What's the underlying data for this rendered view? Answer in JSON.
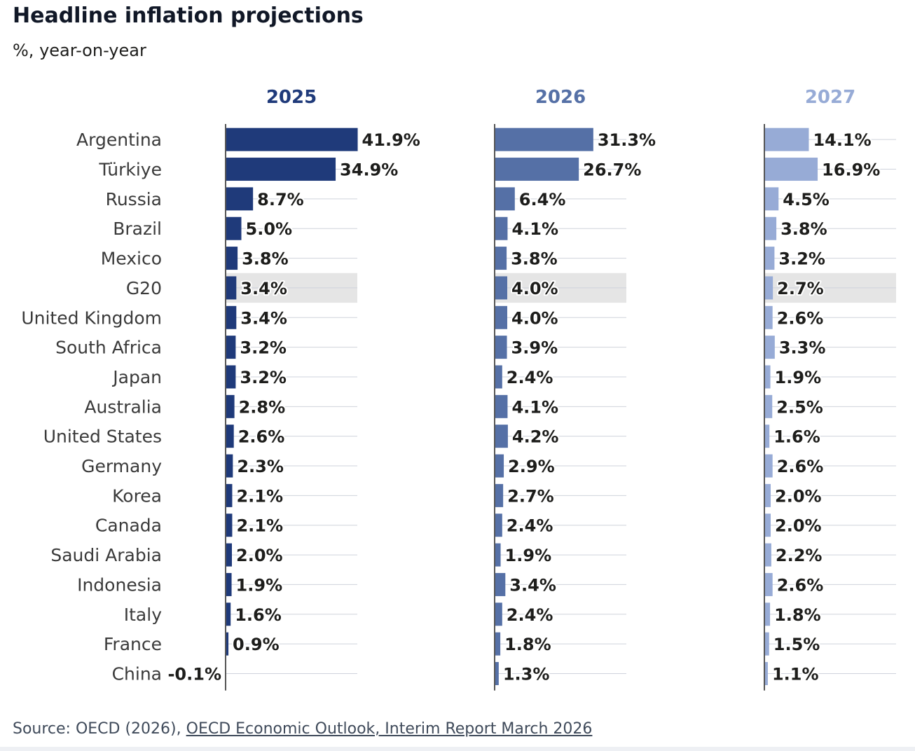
{
  "title": "Headline inflation projections",
  "subtitle": "%, year-on-year",
  "source": {
    "prefix": "Source: OECD (2026), ",
    "link_text": "OECD Economic Outlook, Interim Report March 2026"
  },
  "colors": {
    "2025": "#1f3a7a",
    "2026": "#5570a6",
    "2027": "#97abd6",
    "highlight": "#e5e5e5",
    "gridline": "#cfd3dc",
    "axis": "#555555"
  },
  "chart_data": {
    "type": "bar",
    "orientation": "horizontal",
    "title": "Headline inflation projections",
    "subtitle": "%, year-on-year",
    "categories": [
      "Argentina",
      "Türkiye",
      "Russia",
      "Brazil",
      "Mexico",
      "G20",
      "United Kingdom",
      "South Africa",
      "Japan",
      "Australia",
      "United States",
      "Germany",
      "Korea",
      "Canada",
      "Saudi Arabia",
      "Indonesia",
      "Italy",
      "France",
      "China"
    ],
    "highlight": "G20",
    "xlim": [
      0,
      45
    ],
    "series": [
      {
        "name": "2025",
        "values": [
          41.9,
          34.9,
          8.7,
          5.0,
          3.8,
          3.4,
          3.4,
          3.2,
          3.2,
          2.8,
          2.6,
          2.3,
          2.1,
          2.1,
          2.0,
          1.9,
          1.6,
          0.9,
          -0.1
        ],
        "labels": [
          "41.9%",
          "34.9%",
          "8.7%",
          "5.0%",
          "3.8%",
          "3.4%",
          "3.4%",
          "3.2%",
          "3.2%",
          "2.8%",
          "2.6%",
          "2.3%",
          "2.1%",
          "2.1%",
          "2.0%",
          "1.9%",
          "1.6%",
          "0.9%",
          "-0.1%"
        ]
      },
      {
        "name": "2026",
        "values": [
          31.3,
          26.7,
          6.4,
          4.1,
          3.8,
          4.0,
          4.0,
          3.9,
          2.4,
          4.1,
          4.2,
          2.9,
          2.7,
          2.4,
          1.9,
          3.4,
          2.4,
          1.8,
          1.3
        ],
        "labels": [
          "31.3%",
          "26.7%",
          "6.4%",
          "4.1%",
          "3.8%",
          "4.0%",
          "4.0%",
          "3.9%",
          "2.4%",
          "4.1%",
          "4.2%",
          "2.9%",
          "2.7%",
          "2.4%",
          "1.9%",
          "3.4%",
          "2.4%",
          "1.8%",
          "1.3%"
        ]
      },
      {
        "name": "2027",
        "values": [
          14.1,
          16.9,
          4.5,
          3.8,
          3.2,
          2.7,
          2.6,
          3.3,
          1.9,
          2.5,
          1.6,
          2.6,
          2.0,
          2.0,
          2.2,
          2.6,
          1.8,
          1.5,
          1.1
        ],
        "labels": [
          "14.1%",
          "16.9%",
          "4.5%",
          "3.8%",
          "3.2%",
          "2.7%",
          "2.6%",
          "3.3%",
          "1.9%",
          "2.5%",
          "1.6%",
          "2.6%",
          "2.0%",
          "2.0%",
          "2.2%",
          "2.6%",
          "1.8%",
          "1.5%",
          "1.1%"
        ]
      }
    ]
  }
}
